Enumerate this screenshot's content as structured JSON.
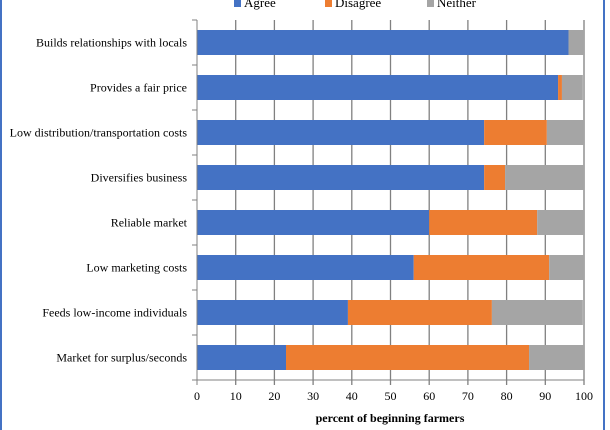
{
  "chart_data": {
    "type": "bar",
    "orientation": "horizontal",
    "stacked": true,
    "title": "",
    "xlabel": "percent of beginning farmers",
    "ylabel": "",
    "xlim": [
      0,
      100
    ],
    "xticks": [
      "0",
      "10",
      "20",
      "30",
      "40",
      "50",
      "60",
      "70",
      "80",
      "90",
      "100"
    ],
    "grid": true,
    "legend_position": "top",
    "categories": [
      "Builds relationships with locals",
      "Provides a fair price",
      "Low distribution/transportation costs",
      "Diversifies business",
      "Reliable market",
      "Low marketing costs",
      "Feeds low-income individuals",
      "Market for surplus/seconds"
    ],
    "series": [
      {
        "name": "Agree",
        "color": "#4472c4",
        "values": [
          96,
          93.3,
          74.2,
          74.2,
          60,
          56,
          39,
          23
        ]
      },
      {
        "name": "Disagree",
        "color": "#ed7d31",
        "values": [
          0,
          1,
          16.2,
          5.4,
          27.9,
          35,
          37.2,
          62.8
        ]
      },
      {
        "name": "Neither",
        "color": "#a5a5a5",
        "values": [
          4,
          5.4,
          9.6,
          20.4,
          12.1,
          9,
          23.5,
          14.2
        ]
      }
    ]
  }
}
